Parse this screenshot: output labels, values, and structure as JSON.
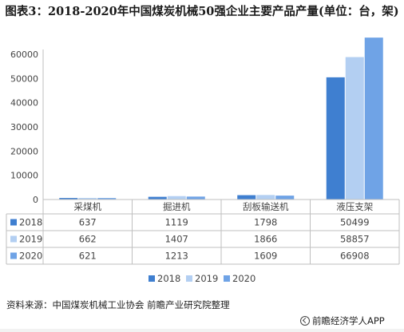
{
  "title": "图表3：2018-2020年中国煤炭机械50强企业主要产品产量(单位：台，架)",
  "source": "资料来源：中国煤炭机械工业协会 前瞻产业研究院整理",
  "brand": "前瞻经济学人APP",
  "colors": {
    "s2018": "#3f7fd0",
    "s2019": "#b3cff2",
    "s2020": "#6fa3e6",
    "grid": "#d9d9d9",
    "text": "#444444"
  },
  "chart_data": {
    "type": "bar",
    "title": "图表3：2018-2020年中国煤炭机械50强企业主要产品产量(单位：台，架)",
    "categories": [
      "采煤机",
      "掘进机",
      "刮板输送机",
      "液压支架"
    ],
    "series": [
      {
        "name": "2018",
        "values": [
          637,
          1119,
          1798,
          50499
        ]
      },
      {
        "name": "2019",
        "values": [
          662,
          1407,
          1866,
          58857
        ]
      },
      {
        "name": "2020",
        "values": [
          621,
          1213,
          1609,
          66908
        ]
      }
    ],
    "yticks": [
      0,
      10000,
      20000,
      30000,
      40000,
      50000,
      60000
    ],
    "ylim": [
      0,
      62000
    ],
    "grid": false,
    "legend": "bottom-right",
    "data_table": true
  }
}
